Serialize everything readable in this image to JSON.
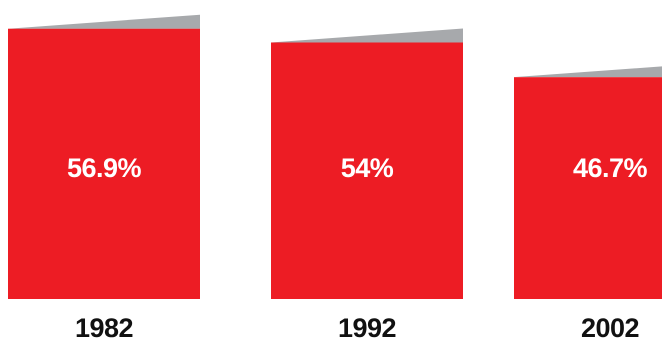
{
  "chart_data": {
    "type": "bar",
    "categories": [
      "1982",
      "1992",
      "2002"
    ],
    "values": [
      56.9,
      54,
      46.7
    ],
    "value_labels": [
      "56.9%",
      "54%",
      "46.7%"
    ],
    "unit": "%",
    "title": "",
    "xlabel": "",
    "ylabel": "",
    "ylim": [
      0,
      60
    ],
    "grid": false,
    "legend": "none",
    "colors": {
      "bar": "#ed1c24",
      "fold": "#a7a9ac",
      "value_text": "#ffffff",
      "category_text": "#111111"
    }
  }
}
